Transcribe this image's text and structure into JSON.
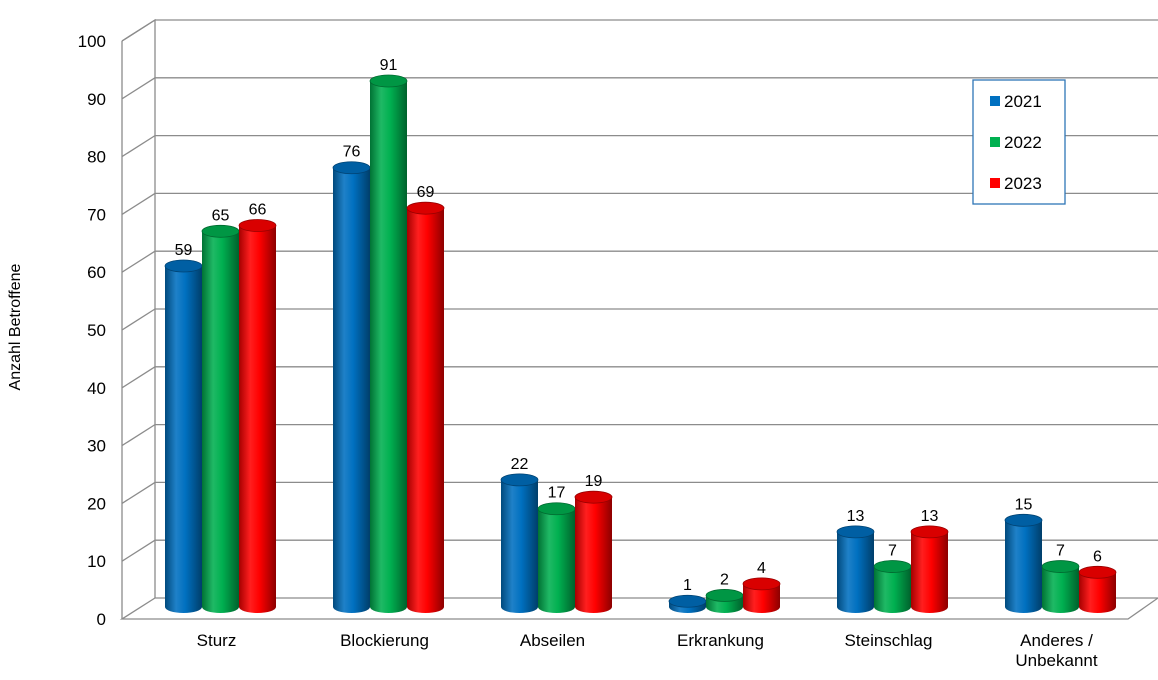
{
  "chart_data": {
    "type": "bar",
    "categories": [
      "Sturz",
      "Blockierung",
      "Abseilen",
      "Erkrankung",
      "Steinschlag",
      [
        "Anderes /",
        "Unbekannt"
      ]
    ],
    "series": [
      {
        "name": "2021",
        "values": [
          59,
          76,
          22,
          1,
          13,
          15
        ],
        "color": "#0070C0"
      },
      {
        "name": "2022",
        "values": [
          65,
          91,
          17,
          2,
          7,
          7
        ],
        "color": "#00B050"
      },
      {
        "name": "2023",
        "values": [
          66,
          69,
          19,
          4,
          13,
          6
        ],
        "color": "#FF0000"
      }
    ],
    "title": "",
    "xlabel": "",
    "ylabel": "Anzahl Betroffene",
    "ylim": [
      0,
      100
    ],
    "yticks": [
      0,
      10,
      20,
      30,
      40,
      50,
      60,
      70,
      80,
      90,
      100
    ],
    "grid": true,
    "legend_position": "top-right",
    "style": "3d-cylinder"
  }
}
